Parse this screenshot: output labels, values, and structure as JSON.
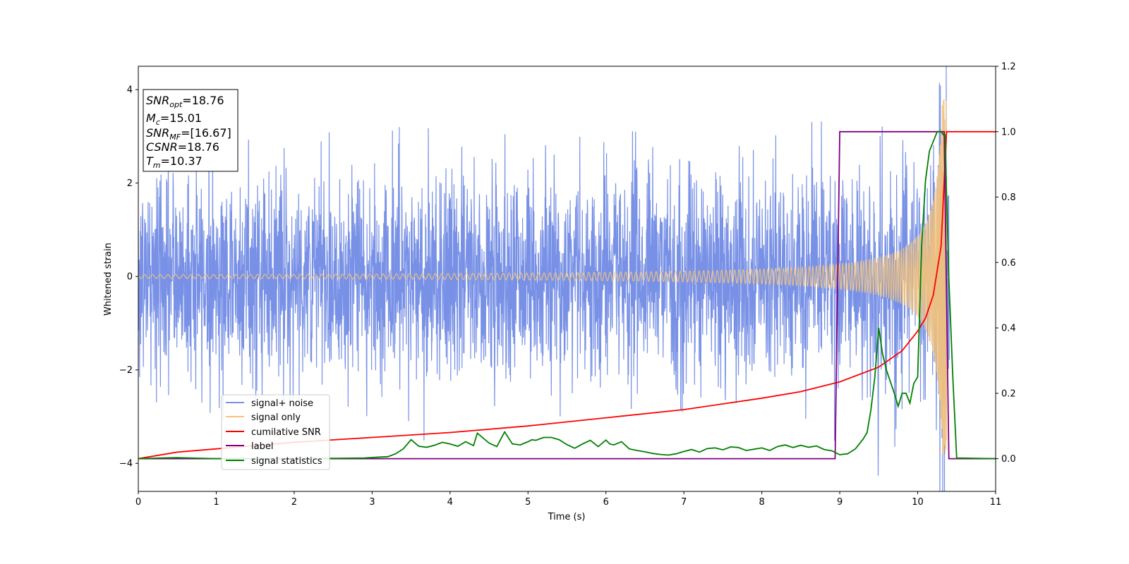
{
  "chart_data": {
    "type": "line",
    "xlabel": "Time (s)",
    "ylabel": "Whitened strain",
    "xlim": [
      0,
      11
    ],
    "ylim": [
      -4.6,
      4.5
    ],
    "y2lim": [
      -0.1,
      1.2
    ],
    "xticks": [
      "0",
      "1",
      "2",
      "3",
      "4",
      "5",
      "6",
      "7",
      "8",
      "9",
      "10",
      "11"
    ],
    "yticks": [
      "4",
      "2",
      "0",
      "−2",
      "−4"
    ],
    "y2ticks": [
      "1.2",
      "1.0",
      "0.8",
      "0.6",
      "0.4",
      "0.2",
      "0.0"
    ],
    "grid": false,
    "legend_position": "lower-left",
    "stats_box": [
      {
        "base": "SNR",
        "sub": "opt",
        "value": "=18.76"
      },
      {
        "base": "M",
        "sub": "c",
        "value": "=15.01"
      },
      {
        "base": "SNR",
        "sub": "MF",
        "value": "=[16.67]"
      },
      {
        "base": "CSNR",
        "sub": "",
        "value": "=18.76"
      },
      {
        "base": "T",
        "sub": "m",
        "value": "=10.37"
      }
    ],
    "series": [
      {
        "name": "signal+ noise",
        "axis": "left",
        "color": "#7891e6",
        "noise_std": 1.1,
        "envelope": [
          -2.6,
          2.6
        ],
        "peak_max": 4.1,
        "peak_min": -4.15
      },
      {
        "name": "signal only",
        "axis": "left",
        "color": "#f5c47a",
        "merger_time": 10.37,
        "amplitude_start": 0.04,
        "amplitude_peak": 3.8
      },
      {
        "name": "cumilative SNR",
        "axis": "right",
        "color": "#ff0000",
        "x": [
          0,
          0.5,
          1,
          2,
          3,
          4,
          5,
          6,
          7,
          8,
          8.5,
          9,
          9.5,
          9.8,
          10,
          10.1,
          10.2,
          10.3,
          10.37,
          10.4,
          11
        ],
        "y": [
          0.0,
          0.02,
          0.03,
          0.05,
          0.065,
          0.08,
          0.1,
          0.125,
          0.15,
          0.185,
          0.205,
          0.235,
          0.28,
          0.33,
          0.39,
          0.43,
          0.5,
          0.65,
          1.0,
          1.0,
          1.0
        ]
      },
      {
        "name": "label",
        "axis": "right",
        "color": "#800080",
        "x": [
          0,
          8.94,
          9.0,
          10.34,
          10.4,
          11
        ],
        "y": [
          0,
          0,
          1,
          1,
          0,
          0
        ]
      },
      {
        "name": "signal statistics",
        "axis": "right",
        "color": "#008000",
        "x": [
          0,
          0.3,
          0.5,
          1,
          2,
          2.5,
          2.9,
          3.1,
          3.2,
          3.3,
          3.4,
          3.5,
          3.6,
          3.7,
          3.8,
          3.9,
          4.0,
          4.1,
          4.2,
          4.3,
          4.35,
          4.5,
          4.6,
          4.7,
          4.8,
          4.9,
          5.0,
          5.05,
          5.1,
          5.2,
          5.3,
          5.4,
          5.5,
          5.6,
          5.7,
          5.8,
          5.9,
          6.0,
          6.05,
          6.1,
          6.2,
          6.3,
          6.4,
          6.5,
          6.6,
          6.7,
          6.8,
          6.9,
          7.0,
          7.1,
          7.2,
          7.3,
          7.4,
          7.5,
          7.6,
          7.7,
          7.8,
          7.9,
          8.0,
          8.1,
          8.2,
          8.3,
          8.4,
          8.5,
          8.6,
          8.7,
          8.8,
          8.9,
          9.0,
          9.1,
          9.2,
          9.3,
          9.35,
          9.4,
          9.45,
          9.5,
          9.55,
          9.6,
          9.7,
          9.75,
          9.8,
          9.85,
          9.9,
          9.95,
          10.0,
          10.05,
          10.1,
          10.15,
          10.2,
          10.25,
          10.3,
          10.33,
          10.35,
          10.4,
          10.45,
          10.5,
          11
        ],
        "y": [
          0,
          0.002,
          0.003,
          0,
          0,
          0.001,
          0.002,
          0.005,
          0.006,
          0.015,
          0.03,
          0.058,
          0.038,
          0.035,
          0.041,
          0.05,
          0.045,
          0.038,
          0.052,
          0.04,
          0.078,
          0.048,
          0.037,
          0.082,
          0.045,
          0.042,
          0.052,
          0.058,
          0.056,
          0.065,
          0.065,
          0.058,
          0.043,
          0.032,
          0.045,
          0.056,
          0.037,
          0.057,
          0.045,
          0.042,
          0.052,
          0.03,
          0.025,
          0.021,
          0.016,
          0.013,
          0.011,
          0.015,
          0.022,
          0.028,
          0.02,
          0.031,
          0.033,
          0.027,
          0.036,
          0.034,
          0.025,
          0.029,
          0.033,
          0.025,
          0.037,
          0.042,
          0.034,
          0.041,
          0.035,
          0.039,
          0.028,
          0.024,
          0.012,
          0.015,
          0.03,
          0.06,
          0.08,
          0.15,
          0.25,
          0.4,
          0.32,
          0.27,
          0.2,
          0.16,
          0.2,
          0.2,
          0.17,
          0.23,
          0.25,
          0.65,
          0.85,
          0.94,
          0.97,
          1.0,
          1.0,
          0.99,
          0.99,
          0.55,
          0.25,
          0.002,
          0
        ]
      }
    ]
  }
}
